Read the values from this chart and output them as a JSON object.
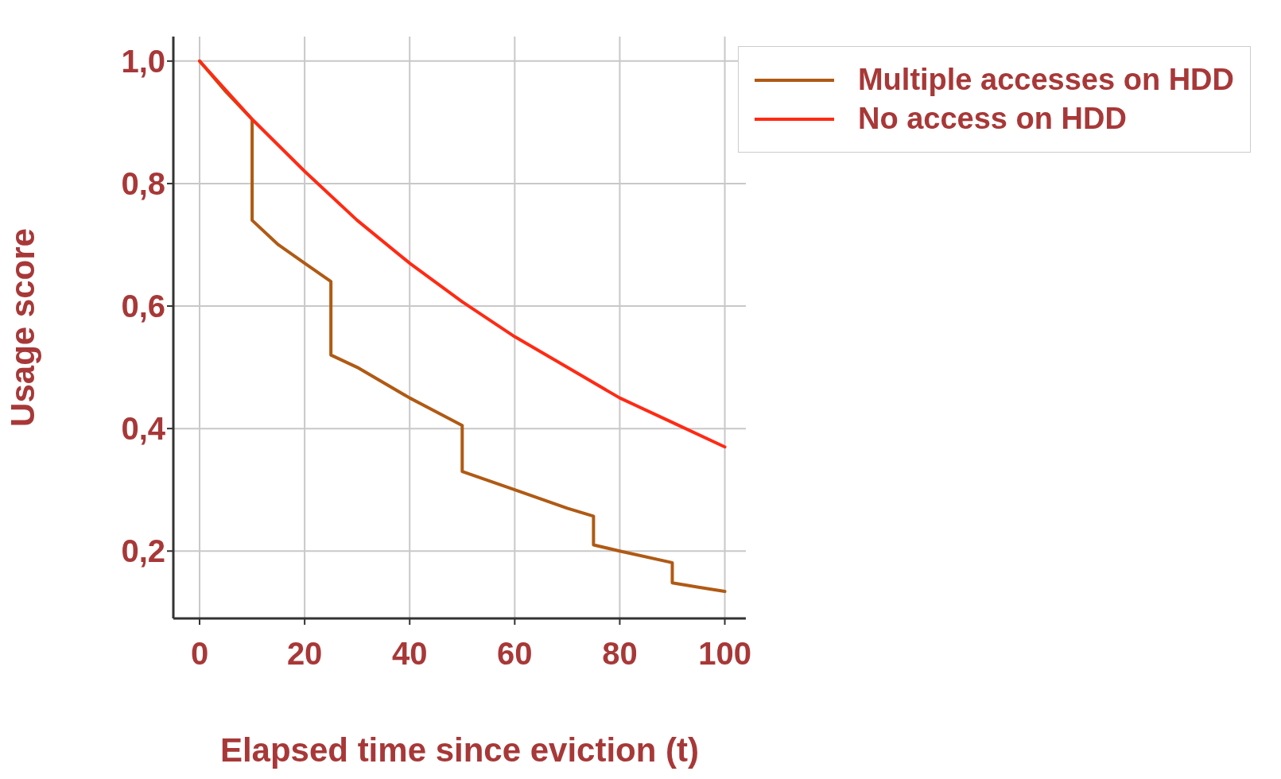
{
  "chart_data": {
    "type": "line",
    "xlabel": "Elapsed time since eviction (t)",
    "ylabel": "Usage score",
    "xlim": [
      -5,
      104
    ],
    "ylim": [
      0.09,
      1.04
    ],
    "xticks": [
      0,
      20,
      40,
      60,
      80,
      100
    ],
    "yticks": [
      {
        "value": 0.2,
        "label": "0,2"
      },
      {
        "value": 0.4,
        "label": "0,4"
      },
      {
        "value": 0.6,
        "label": "0,6"
      },
      {
        "value": 0.8,
        "label": "0,8"
      },
      {
        "value": 1.0,
        "label": "1,0"
      }
    ],
    "grid": true,
    "legend": "top right",
    "line_style": "solid",
    "series": [
      {
        "name": "Multiple accesses on HDD",
        "color": "#b05a14",
        "x": [
          0,
          5,
          10,
          10,
          15,
          20,
          25,
          25,
          30,
          40,
          50,
          50,
          60,
          70,
          75,
          75,
          80,
          90,
          90,
          95,
          100
        ],
        "values": [
          1.0,
          0.95,
          0.905,
          0.74,
          0.7,
          0.67,
          0.64,
          0.52,
          0.5,
          0.45,
          0.405,
          0.33,
          0.3,
          0.27,
          0.257,
          0.21,
          0.2,
          0.181,
          0.148,
          0.141,
          0.134
        ]
      },
      {
        "name": "No access on HDD",
        "color": "#ff2a14",
        "x": [
          0,
          10,
          20,
          30,
          40,
          50,
          60,
          70,
          80,
          90,
          100
        ],
        "values": [
          1.0,
          0.905,
          0.82,
          0.74,
          0.67,
          0.607,
          0.55,
          0.5,
          0.45,
          0.41,
          0.37
        ]
      }
    ]
  }
}
